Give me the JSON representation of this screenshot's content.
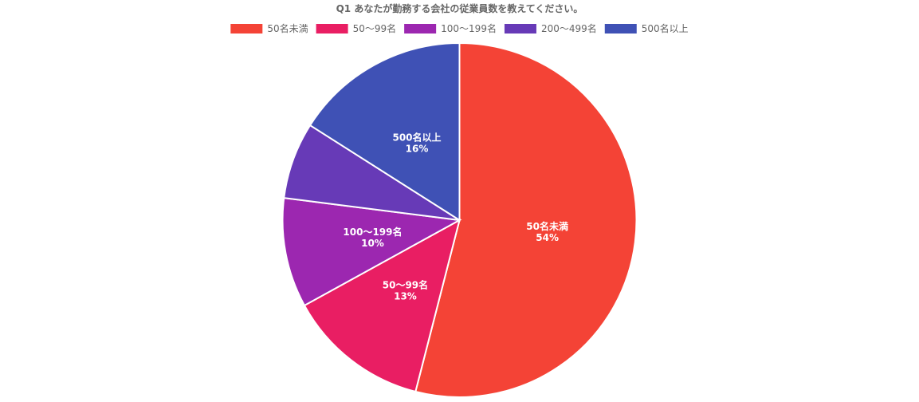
{
  "chart_data": {
    "type": "pie",
    "title": "Q1 あなたが勤務する会社の従業員数を教えてください。",
    "categories": [
      "50名未満",
      "50〜99名",
      "100〜199名",
      "200〜499名",
      "500名以上"
    ],
    "values": [
      54,
      13,
      10,
      7,
      16
    ],
    "value_labels": [
      "54%",
      "13%",
      "10%",
      "",
      "16%"
    ],
    "colors": [
      "#f44336",
      "#e91e63",
      "#9c27b0",
      "#673ab7",
      "#3f51b5"
    ],
    "legend_position": "top",
    "start_angle": "12 o'clock",
    "direction": "clockwise"
  }
}
